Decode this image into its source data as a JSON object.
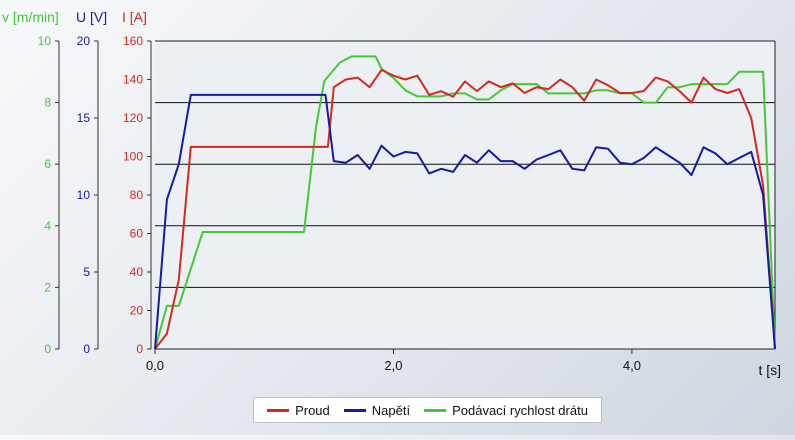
{
  "colors": {
    "current": "#d42a1e",
    "voltage": "#141ca0",
    "speed": "#44c936",
    "background": "#eceff3"
  },
  "chart_data": {
    "type": "line",
    "xlabel": "t [s]",
    "xlim": [
      0,
      5.2
    ],
    "x_ticks": [
      "0,0",
      "2,0",
      "4,0"
    ],
    "axes": [
      {
        "id": "speed",
        "label": "v [m/min]",
        "range": [
          0,
          10
        ],
        "ticks": [
          "0",
          "2",
          "4",
          "6",
          "8",
          "10"
        ],
        "color": "#44c936"
      },
      {
        "id": "voltage",
        "label": "U [V]",
        "range": [
          0,
          20
        ],
        "ticks": [
          "0",
          "5",
          "10",
          "15",
          "20"
        ],
        "color": "#141ca0"
      },
      {
        "id": "current",
        "label": "I [A]",
        "range": [
          0,
          160
        ],
        "ticks": [
          "0",
          "20",
          "40",
          "60",
          "80",
          "100",
          "120",
          "140",
          "160"
        ],
        "color": "#d42a1e"
      }
    ],
    "grid_y_current": [
      32,
      64,
      96,
      128
    ],
    "legend_position": "bottom-center",
    "series": [
      {
        "name": "Proud",
        "axis": "current",
        "color": "#d42a1e",
        "x": [
          0,
          0.1,
          0.2,
          0.3,
          1.45,
          1.5,
          1.6,
          1.7,
          1.8,
          1.9,
          2.0,
          2.1,
          2.2,
          2.3,
          2.4,
          2.5,
          2.6,
          2.7,
          2.8,
          2.9,
          3.0,
          3.1,
          3.2,
          3.3,
          3.4,
          3.5,
          3.6,
          3.7,
          3.8,
          3.9,
          4.0,
          4.1,
          4.2,
          4.3,
          4.4,
          4.5,
          4.6,
          4.7,
          4.8,
          4.9,
          5.0,
          5.1,
          5.2
        ],
        "y": [
          0,
          8,
          36,
          105,
          105,
          136,
          140,
          141,
          136,
          145,
          142,
          140,
          142,
          132,
          134,
          131,
          139,
          134,
          139,
          136,
          138,
          133,
          136,
          135,
          140,
          136,
          129,
          140,
          137,
          133,
          133,
          134,
          141,
          139,
          134,
          128,
          141,
          135,
          133,
          135,
          120,
          85,
          0
        ]
      },
      {
        "name": "Napětí",
        "axis": "voltage",
        "color": "#141ca0",
        "x": [
          0,
          0.1,
          0.2,
          0.3,
          1.43,
          1.5,
          1.6,
          1.7,
          1.8,
          1.9,
          2.0,
          2.1,
          2.2,
          2.3,
          2.4,
          2.5,
          2.6,
          2.7,
          2.8,
          2.9,
          3.0,
          3.1,
          3.2,
          3.3,
          3.4,
          3.5,
          3.6,
          3.7,
          3.8,
          3.9,
          4.0,
          4.1,
          4.2,
          4.3,
          4.4,
          4.5,
          4.6,
          4.7,
          4.8,
          4.9,
          5.0,
          5.1,
          5.2
        ],
        "y": [
          0,
          9.7,
          12.0,
          16.5,
          16.5,
          12.2,
          12.1,
          12.6,
          11.7,
          13.2,
          12.5,
          12.8,
          12.7,
          11.4,
          11.7,
          11.5,
          12.6,
          12.1,
          12.9,
          12.2,
          12.2,
          11.7,
          12.3,
          12.6,
          12.9,
          11.7,
          11.6,
          13.1,
          13.0,
          12.1,
          12.0,
          12.4,
          13.1,
          12.6,
          12.1,
          11.3,
          13.1,
          12.7,
          12.0,
          12.4,
          12.8,
          10.0,
          0
        ]
      },
      {
        "name": "Podávací rychlost drátu",
        "axis": "speed",
        "color": "#44c936",
        "x": [
          0,
          0.1,
          0.2,
          0.3,
          0.4,
          1.25,
          1.35,
          1.42,
          1.55,
          1.65,
          1.75,
          1.85,
          1.9,
          2.0,
          2.1,
          2.2,
          2.3,
          2.4,
          2.5,
          2.6,
          2.7,
          2.8,
          2.9,
          3.0,
          3.1,
          3.2,
          3.3,
          3.4,
          3.5,
          3.6,
          3.7,
          3.8,
          3.9,
          4.0,
          4.1,
          4.2,
          4.3,
          4.4,
          4.5,
          4.6,
          4.7,
          4.8,
          4.9,
          5.0,
          5.1,
          5.2
        ],
        "y": [
          0,
          1.4,
          1.4,
          2.6,
          3.8,
          3.8,
          7.2,
          8.7,
          9.3,
          9.5,
          9.5,
          9.5,
          9.1,
          8.8,
          8.4,
          8.2,
          8.2,
          8.2,
          8.3,
          8.3,
          8.1,
          8.1,
          8.4,
          8.6,
          8.6,
          8.6,
          8.3,
          8.3,
          8.3,
          8.3,
          8.4,
          8.4,
          8.3,
          8.3,
          8.0,
          8.0,
          8.5,
          8.5,
          8.6,
          8.6,
          8.6,
          8.6,
          9.0,
          9.0,
          9.0,
          0
        ]
      }
    ]
  }
}
